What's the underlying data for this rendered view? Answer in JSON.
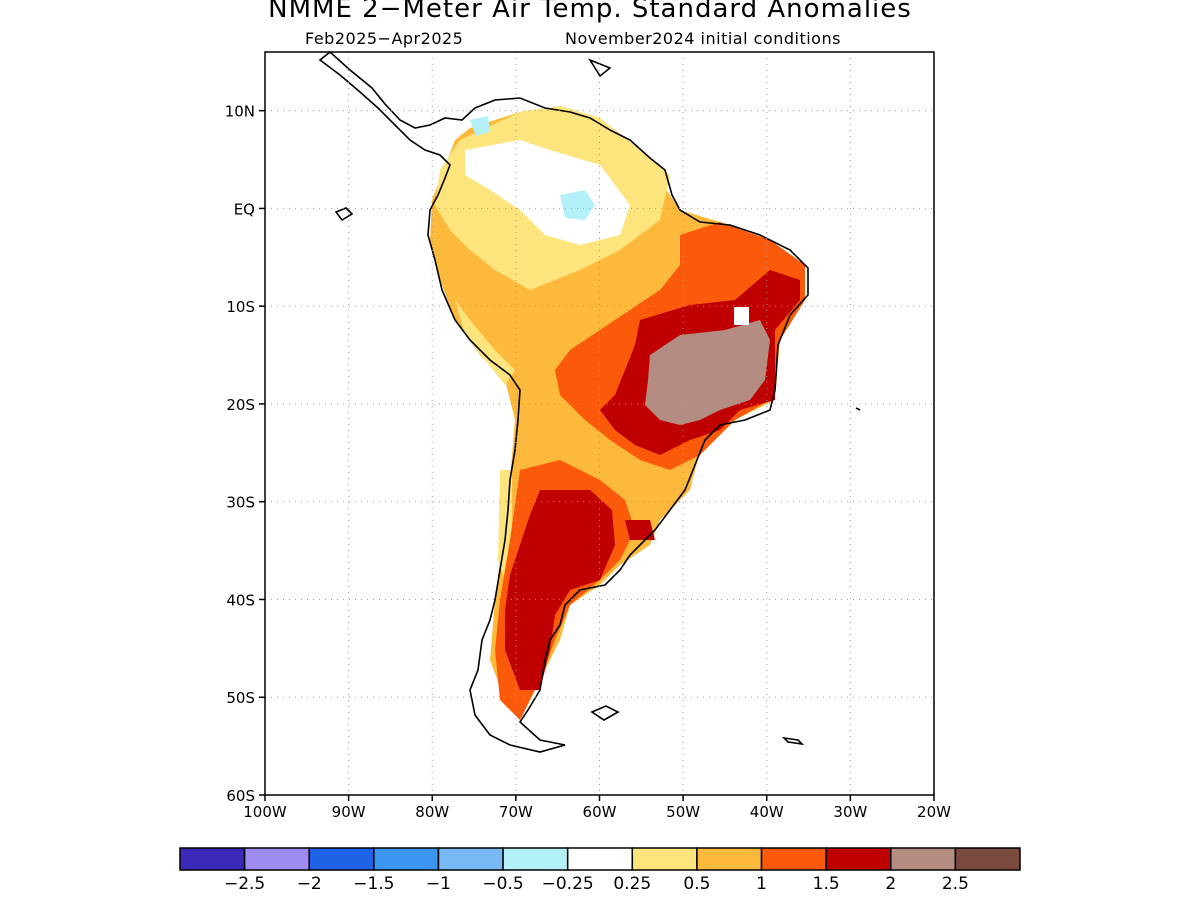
{
  "title": "NMME 2−Meter Air Temp. Standard Anomalies",
  "subtitle_left": "Feb2025−Apr2025",
  "subtitle_right": "November2024 initial conditions",
  "map": {
    "lon_range": [
      -100,
      -20
    ],
    "lat_range": [
      -60,
      16
    ],
    "lon_ticks": [
      "100W",
      "90W",
      "80W",
      "70W",
      "60W",
      "50W",
      "40W",
      "30W",
      "20W"
    ],
    "lat_ticks": [
      "10N",
      "EQ",
      "10S",
      "20S",
      "30S",
      "40S",
      "50S",
      "60S"
    ],
    "grid": "dotted"
  },
  "colorbar": {
    "colors": [
      "#3a28b8",
      "#9f8cf2",
      "#1e62e6",
      "#3c96f0",
      "#78b8f4",
      "#b4f0f8",
      "#ffffff",
      "#fde47c",
      "#fdb93c",
      "#fb5a0a",
      "#c00000",
      "#b48c82",
      "#7a4a3e"
    ],
    "labels": [
      "−2.5",
      "−2",
      "−1.5",
      "−1",
      "−0.5",
      "−0.25",
      "0.25",
      "0.5",
      "1",
      "1.5",
      "2",
      "2.5"
    ]
  }
}
